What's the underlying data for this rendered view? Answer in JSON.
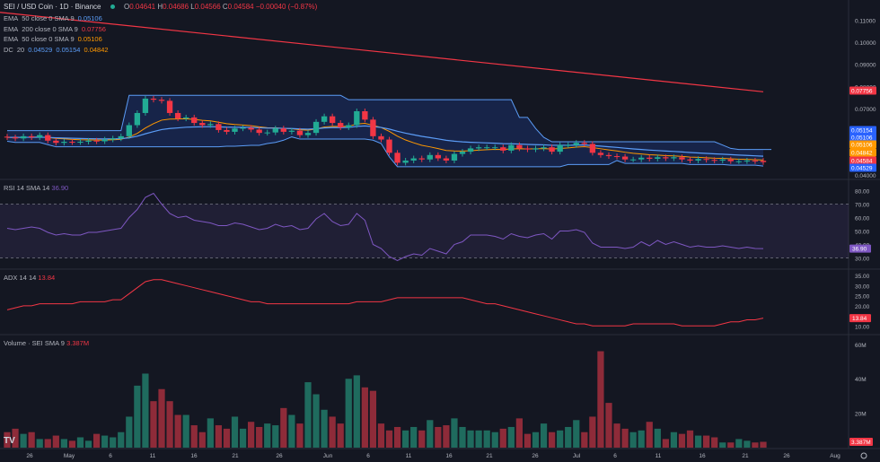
{
  "header": {
    "symbol": "SEI / USD Coin · 1D · Binance",
    "open_label": "O",
    "open": "0.04641",
    "high_label": "H",
    "high": "0.04686",
    "low_label": "L",
    "low": "0.04566",
    "close_label": "C",
    "close": "0.04584",
    "change": "−0.00040 (−0.87%)"
  },
  "indicators": [
    {
      "name": "EMA",
      "params": "50 close 0 SMA 9",
      "value": "0.05106",
      "color": "#2962ff"
    },
    {
      "name": "EMA",
      "params": "200 close 0 SMA 9",
      "value": "0.07756",
      "color": "#f23645"
    },
    {
      "name": "EMA",
      "params": "50 close 0 SMA 9",
      "value": "0.05106",
      "color": "#ff9800"
    }
  ],
  "dc": {
    "name": "DC",
    "params": "20",
    "v1": "0.04529",
    "v2": "0.05154",
    "v3": "0.04842"
  },
  "rsi_label": {
    "name": "RSI",
    "params": "14 SMA 14",
    "value": "36.90"
  },
  "adx_label": {
    "name": "ADX",
    "params": "14 14",
    "value": "13.84"
  },
  "volume_label": {
    "name": "Volume · SEI",
    "params": "SMA 9",
    "value": "3.387M"
  },
  "price_tags": [
    {
      "text": "0.07756",
      "value": 0.07756,
      "color": "#f23645"
    },
    {
      "text": "0.05154",
      "value": 0.05154,
      "color": "#2962ff"
    },
    {
      "text": "0.05106",
      "value": 0.05106,
      "color": "#2962ff"
    },
    {
      "text": "0.05106",
      "value": 0.05106,
      "color": "#ff9800"
    },
    {
      "text": "0.04842",
      "value": 0.04842,
      "color": "#ff9800"
    },
    {
      "text": "0.04584",
      "value": 0.04584,
      "color": "#f23645"
    },
    {
      "text": "0.04529",
      "value": 0.04529,
      "color": "#2962ff"
    }
  ],
  "rsi_tag": "36.90",
  "adx_tag": "13.84",
  "vol_tag": "3.387M",
  "colors": {
    "up": "#22ab94",
    "down": "#f23645",
    "ema200": "#f23645",
    "dc": "#5b9cf6",
    "ema_orange": "#ff9800",
    "rsi": "#7e57c2",
    "adx": "#f23645"
  },
  "chart_data": [
    {
      "type": "candlestick",
      "title": "SEI / USD Coin · 1D · Binance",
      "x_tick_labels": [
        "26",
        "May",
        "6",
        "11",
        "16",
        "21",
        "26",
        "Jun",
        "6",
        "11",
        "16",
        "21",
        "26",
        "Jul",
        "6",
        "11",
        "16",
        "21",
        "26",
        "Aug"
      ],
      "y_tick_labels": [
        "0.11000",
        "0.10000",
        "0.09000",
        "0.08000",
        "0.07000",
        "0.04000"
      ],
      "ylim": [
        0.04,
        0.113
      ],
      "ohlc_close": [
        0.057,
        0.0565,
        0.0575,
        0.057,
        0.058,
        0.0555,
        0.0545,
        0.055,
        0.0548,
        0.055,
        0.0555,
        0.0552,
        0.056,
        0.0565,
        0.0575,
        0.0625,
        0.068,
        0.0745,
        0.074,
        0.0735,
        0.068,
        0.0655,
        0.066,
        0.0635,
        0.0625,
        0.063,
        0.0603,
        0.0595,
        0.061,
        0.0613,
        0.0605,
        0.059,
        0.0592,
        0.061,
        0.0595,
        0.06,
        0.058,
        0.059,
        0.064,
        0.0665,
        0.0635,
        0.0615,
        0.0625,
        0.0688,
        0.065,
        0.0575,
        0.056,
        0.05,
        0.0455,
        0.0465,
        0.0475,
        0.047,
        0.049,
        0.0475,
        0.0465,
        0.0495,
        0.0505,
        0.052,
        0.0525,
        0.0525,
        0.0525,
        0.051,
        0.0535,
        0.052,
        0.0515,
        0.052,
        0.0525,
        0.0505,
        0.0535,
        0.0535,
        0.0545,
        0.054,
        0.05,
        0.049,
        0.0485,
        0.0483,
        0.047,
        0.047,
        0.0478,
        0.0473,
        0.048,
        0.0475,
        0.048,
        0.047,
        0.0465,
        0.0472,
        0.0468,
        0.0465,
        0.047,
        0.0462,
        0.0462,
        0.0465,
        0.0462,
        0.0458
      ],
      "ohlc_open": [
        0.0573,
        0.057,
        0.0565,
        0.0575,
        0.057,
        0.058,
        0.0555,
        0.0545,
        0.055,
        0.0548,
        0.055,
        0.0555,
        0.0552,
        0.056,
        0.0565,
        0.0575,
        0.0625,
        0.068,
        0.0745,
        0.074,
        0.0735,
        0.068,
        0.0655,
        0.066,
        0.0635,
        0.0625,
        0.063,
        0.0603,
        0.0595,
        0.061,
        0.0613,
        0.0605,
        0.059,
        0.0592,
        0.061,
        0.0595,
        0.06,
        0.058,
        0.059,
        0.064,
        0.0665,
        0.0635,
        0.0615,
        0.0625,
        0.0688,
        0.065,
        0.0575,
        0.056,
        0.05,
        0.0455,
        0.0465,
        0.0475,
        0.047,
        0.049,
        0.0475,
        0.0465,
        0.0495,
        0.0505,
        0.052,
        0.0525,
        0.0525,
        0.0525,
        0.051,
        0.0535,
        0.052,
        0.0515,
        0.052,
        0.0525,
        0.0505,
        0.0535,
        0.0535,
        0.0545,
        0.054,
        0.05,
        0.049,
        0.0485,
        0.0483,
        0.047,
        0.047,
        0.0478,
        0.0473,
        0.048,
        0.0475,
        0.048,
        0.047,
        0.0465,
        0.0472,
        0.0468,
        0.0465,
        0.047,
        0.0462,
        0.0462,
        0.0465,
        0.0464
      ],
      "ema200": [
        0.1135,
        0.0776
      ],
      "dc_upper_approx": [
        0.06,
        0.06,
        0.06,
        0.06,
        0.06,
        0.06,
        0.06,
        0.06,
        0.06,
        0.06,
        0.06,
        0.06,
        0.06,
        0.06,
        0.06,
        0.076,
        0.076,
        0.076,
        0.076,
        0.076,
        0.076,
        0.076,
        0.076,
        0.076,
        0.076,
        0.076,
        0.076,
        0.076,
        0.076,
        0.076,
        0.076,
        0.076,
        0.076,
        0.076,
        0.076,
        0.076,
        0.076,
        0.076,
        0.076,
        0.076,
        0.076,
        0.076,
        0.074,
        0.074,
        0.074,
        0.074,
        0.074,
        0.074,
        0.074,
        0.074,
        0.074,
        0.074,
        0.074,
        0.074,
        0.074,
        0.074,
        0.074,
        0.074,
        0.074,
        0.074,
        0.074,
        0.074,
        0.074,
        0.066,
        0.066,
        0.061,
        0.057,
        0.055,
        0.055,
        0.055,
        0.055,
        0.055,
        0.055,
        0.055,
        0.055,
        0.055,
        0.055,
        0.055,
        0.055,
        0.055,
        0.055,
        0.055,
        0.055,
        0.055,
        0.055,
        0.055,
        0.055,
        0.055,
        0.0535,
        0.052,
        0.0515,
        0.0515,
        0.0515,
        0.0515,
        0.0515
      ],
      "rsi_values": [
        52,
        51,
        52,
        53,
        52,
        49,
        47,
        48,
        47,
        47,
        49,
        49,
        50,
        51,
        52,
        60,
        66,
        75,
        78,
        70,
        63,
        60,
        61,
        58,
        57,
        56,
        54,
        54,
        56,
        55,
        53,
        51,
        52,
        55,
        53,
        54,
        51,
        52,
        59,
        63,
        57,
        54,
        55,
        63,
        58,
        40,
        37,
        31,
        28,
        31,
        33,
        32,
        37,
        35,
        33,
        40,
        42,
        47,
        47,
        47,
        46,
        44,
        48,
        46,
        45,
        47,
        48,
        44,
        50,
        50,
        51,
        49,
        41,
        38,
        38,
        38,
        37,
        38,
        42,
        39,
        43,
        40,
        42,
        40,
        38,
        39,
        38,
        38,
        39,
        38,
        37,
        38,
        37,
        36.9
      ],
      "rsi_ticks": [
        "80.00",
        "70.00",
        "60.00",
        "50.00",
        "40.00",
        "30.00"
      ],
      "adx_values": [
        18,
        19,
        20,
        20,
        21,
        21,
        21,
        21,
        21,
        22,
        22,
        22,
        22,
        23,
        23,
        26,
        29,
        32,
        33,
        33,
        32,
        31,
        30,
        29,
        28,
        27,
        26,
        25,
        24,
        23,
        22,
        22,
        21,
        21,
        21,
        21,
        21,
        21,
        21,
        21,
        21,
        21,
        21,
        22,
        22,
        22,
        22,
        23,
        24,
        24,
        24,
        24,
        24,
        24,
        24,
        24,
        24,
        23,
        22,
        21,
        21,
        20,
        19,
        18,
        17,
        16,
        15,
        14,
        13,
        12,
        11,
        11,
        10,
        10,
        10,
        10,
        10,
        11,
        11,
        11,
        11,
        11,
        11,
        10,
        10,
        10,
        10,
        10,
        11,
        12,
        12,
        13,
        13,
        13.84
      ],
      "adx_ticks": [
        "35.00",
        "30.00",
        "25.00",
        "20.00",
        "15.00",
        "10.00"
      ],
      "volume_m": [
        9,
        11,
        8,
        9,
        5,
        5,
        7,
        5,
        4,
        6,
        4,
        8,
        7,
        6,
        9,
        18,
        36,
        43,
        27,
        34,
        27,
        19,
        19,
        13,
        9,
        17,
        13,
        11,
        18,
        11,
        15,
        12,
        14,
        13,
        23,
        19,
        14,
        38,
        31,
        22,
        18,
        14,
        40,
        42,
        35,
        33,
        14,
        10,
        12,
        10,
        12,
        10,
        16,
        12,
        13,
        17,
        12,
        10,
        10,
        10,
        9,
        11,
        12,
        17,
        8,
        9,
        14,
        9,
        10,
        12,
        16,
        9,
        18,
        56,
        26,
        14,
        11,
        9,
        10,
        15,
        11,
        5,
        9,
        8,
        10,
        7,
        7,
        6,
        3,
        3,
        5,
        4,
        3,
        3.387
      ],
      "volume_ticks": [
        "60M",
        "40M",
        "20M"
      ]
    }
  ]
}
